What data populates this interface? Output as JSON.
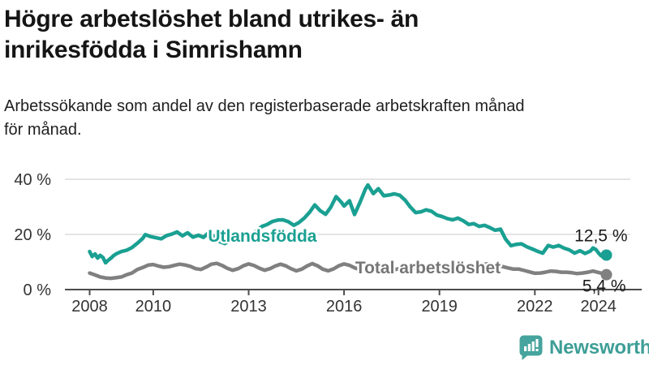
{
  "header": {
    "title_lines": [
      "Högre arbetslöshet bland utrikes- än",
      "inrikesfödda i Simrishamn"
    ],
    "subtitle_lines": [
      "Arbetssökande som andel av den registerbaserade arbetskraften månad",
      "för månad."
    ]
  },
  "chart_data": {
    "type": "line",
    "title": "Högre arbetslöshet bland utrikes- än inrikesfödda i Simrishamn",
    "subtitle": "Arbetssökande som andel av den registerbaserade arbetskraften månad för månad.",
    "x_unit": "year (decimal fraction = month)",
    "y_unit": "percent of registered labour force",
    "xlim": [
      2007.7,
      2025.1
    ],
    "ylim": [
      0,
      40
    ],
    "grid": "horizontal",
    "legend_position": "inline-labels-on-lines",
    "yticks": [
      {
        "value": 0,
        "label": "0 %"
      },
      {
        "value": 20,
        "label": "20 %"
      },
      {
        "value": 40,
        "label": "40 %"
      }
    ],
    "xticks": [
      {
        "value": 2008,
        "label": "2008"
      },
      {
        "value": 2010,
        "label": "2010"
      },
      {
        "value": 2013,
        "label": "2013"
      },
      {
        "value": 2016,
        "label": "2016"
      },
      {
        "value": 2019,
        "label": "2019"
      },
      {
        "value": 2022,
        "label": "2022"
      },
      {
        "value": 2024,
        "label": "2024"
      }
    ],
    "series": [
      {
        "name": "Utlandsfödda",
        "color": "#1aa092",
        "label_color": "#1aa092",
        "label_at": {
          "x": 2011.72,
          "y": 17.35
        },
        "end_annotation": "12,5 %",
        "end_value": 12.5,
        "points": [
          [
            2008.0,
            13.8
          ],
          [
            2008.08,
            12.0
          ],
          [
            2008.17,
            12.9
          ],
          [
            2008.25,
            11.4
          ],
          [
            2008.33,
            12.4
          ],
          [
            2008.42,
            11.6
          ],
          [
            2008.5,
            9.7
          ],
          [
            2008.58,
            10.6
          ],
          [
            2008.67,
            11.4
          ],
          [
            2008.75,
            12.3
          ],
          [
            2008.83,
            12.9
          ],
          [
            2008.92,
            13.4
          ],
          [
            2009.0,
            13.8
          ],
          [
            2009.17,
            14.3
          ],
          [
            2009.33,
            15.2
          ],
          [
            2009.5,
            16.8
          ],
          [
            2009.67,
            18.6
          ],
          [
            2009.75,
            19.9
          ],
          [
            2009.92,
            19.2
          ],
          [
            2010.08,
            18.8
          ],
          [
            2010.25,
            18.4
          ],
          [
            2010.42,
            19.6
          ],
          [
            2010.58,
            20.1
          ],
          [
            2010.75,
            20.9
          ],
          [
            2010.83,
            20.2
          ],
          [
            2010.92,
            19.5
          ],
          [
            2011.08,
            20.6
          ],
          [
            2011.25,
            19.0
          ],
          [
            2011.42,
            19.7
          ],
          [
            2011.58,
            18.9
          ],
          [
            2011.75,
            20.7
          ],
          [
            2011.92,
            19.2
          ],
          [
            2012.08,
            17.4
          ],
          [
            2012.25,
            16.7
          ],
          [
            2012.42,
            17.7
          ],
          [
            2012.58,
            18.6
          ],
          [
            2012.75,
            19.2
          ],
          [
            2012.92,
            19.7
          ],
          [
            2013.08,
            20.2
          ],
          [
            2013.25,
            21.2
          ],
          [
            2013.42,
            22.9
          ],
          [
            2013.58,
            23.6
          ],
          [
            2013.75,
            24.7
          ],
          [
            2013.92,
            25.2
          ],
          [
            2014.08,
            25.3
          ],
          [
            2014.25,
            24.6
          ],
          [
            2014.42,
            23.3
          ],
          [
            2014.58,
            24.3
          ],
          [
            2014.75,
            25.9
          ],
          [
            2014.92,
            28.1
          ],
          [
            2015.08,
            30.7
          ],
          [
            2015.25,
            28.6
          ],
          [
            2015.42,
            27.3
          ],
          [
            2015.58,
            29.8
          ],
          [
            2015.75,
            33.7
          ],
          [
            2015.92,
            31.6
          ],
          [
            2016.0,
            30.3
          ],
          [
            2016.17,
            32.2
          ],
          [
            2016.33,
            27.2
          ],
          [
            2016.5,
            31.6
          ],
          [
            2016.67,
            36.4
          ],
          [
            2016.75,
            37.9
          ],
          [
            2016.92,
            34.8
          ],
          [
            2017.08,
            36.6
          ],
          [
            2017.25,
            34.0
          ],
          [
            2017.42,
            34.3
          ],
          [
            2017.58,
            34.7
          ],
          [
            2017.75,
            34.2
          ],
          [
            2017.92,
            32.4
          ],
          [
            2018.08,
            30.0
          ],
          [
            2018.25,
            27.9
          ],
          [
            2018.42,
            28.2
          ],
          [
            2018.58,
            28.9
          ],
          [
            2018.75,
            28.4
          ],
          [
            2018.92,
            27.0
          ],
          [
            2019.08,
            26.5
          ],
          [
            2019.25,
            25.7
          ],
          [
            2019.42,
            25.3
          ],
          [
            2019.58,
            25.9
          ],
          [
            2019.75,
            24.9
          ],
          [
            2019.92,
            23.6
          ],
          [
            2020.08,
            23.9
          ],
          [
            2020.25,
            22.9
          ],
          [
            2020.42,
            23.3
          ],
          [
            2020.58,
            22.5
          ],
          [
            2020.75,
            21.5
          ],
          [
            2020.92,
            21.9
          ],
          [
            2021.08,
            18.3
          ],
          [
            2021.25,
            15.9
          ],
          [
            2021.42,
            16.4
          ],
          [
            2021.58,
            16.6
          ],
          [
            2021.75,
            15.5
          ],
          [
            2021.92,
            14.7
          ],
          [
            2022.08,
            13.9
          ],
          [
            2022.25,
            13.2
          ],
          [
            2022.42,
            16.0
          ],
          [
            2022.58,
            15.4
          ],
          [
            2022.75,
            16.0
          ],
          [
            2022.92,
            15.0
          ],
          [
            2023.08,
            14.4
          ],
          [
            2023.25,
            13.2
          ],
          [
            2023.42,
            14.1
          ],
          [
            2023.58,
            13.1
          ],
          [
            2023.75,
            14.0
          ],
          [
            2023.83,
            15.1
          ],
          [
            2023.92,
            14.5
          ],
          [
            2024.0,
            13.3
          ],
          [
            2024.08,
            12.3
          ],
          [
            2024.17,
            11.7
          ],
          [
            2024.25,
            12.5
          ]
        ]
      },
      {
        "name": "Total arbetslöshet",
        "color": "#808080",
        "label_color": "#767676",
        "label_at": {
          "x": 2016.35,
          "y": 5.9
        },
        "end_annotation": "5,4 %",
        "end_value": 5.4,
        "points": [
          [
            2008.0,
            6.0
          ],
          [
            2008.17,
            5.3
          ],
          [
            2008.33,
            4.6
          ],
          [
            2008.5,
            4.2
          ],
          [
            2008.67,
            4.1
          ],
          [
            2008.83,
            4.3
          ],
          [
            2009.0,
            4.6
          ],
          [
            2009.17,
            5.4
          ],
          [
            2009.33,
            6.0
          ],
          [
            2009.5,
            7.3
          ],
          [
            2009.67,
            8.0
          ],
          [
            2009.85,
            8.9
          ],
          [
            2010.0,
            9.1
          ],
          [
            2010.17,
            8.5
          ],
          [
            2010.33,
            8.1
          ],
          [
            2010.5,
            8.3
          ],
          [
            2010.67,
            8.8
          ],
          [
            2010.83,
            9.2
          ],
          [
            2011.0,
            8.9
          ],
          [
            2011.17,
            8.4
          ],
          [
            2011.33,
            7.6
          ],
          [
            2011.5,
            7.3
          ],
          [
            2011.67,
            8.2
          ],
          [
            2011.83,
            9.2
          ],
          [
            2012.0,
            9.5
          ],
          [
            2012.17,
            8.7
          ],
          [
            2012.33,
            7.7
          ],
          [
            2012.5,
            7.0
          ],
          [
            2012.67,
            7.6
          ],
          [
            2012.83,
            8.6
          ],
          [
            2013.0,
            9.3
          ],
          [
            2013.17,
            8.7
          ],
          [
            2013.33,
            7.8
          ],
          [
            2013.5,
            7.0
          ],
          [
            2013.67,
            7.6
          ],
          [
            2013.83,
            8.5
          ],
          [
            2014.0,
            9.2
          ],
          [
            2014.17,
            8.6
          ],
          [
            2014.33,
            7.6
          ],
          [
            2014.5,
            6.8
          ],
          [
            2014.67,
            7.4
          ],
          [
            2014.83,
            8.5
          ],
          [
            2015.0,
            9.4
          ],
          [
            2015.17,
            8.6
          ],
          [
            2015.33,
            7.4
          ],
          [
            2015.5,
            6.8
          ],
          [
            2015.67,
            7.5
          ],
          [
            2015.83,
            8.6
          ],
          [
            2016.0,
            9.3
          ],
          [
            2016.17,
            8.8
          ],
          [
            2016.33,
            7.9
          ],
          [
            2016.5,
            7.2
          ],
          [
            2016.67,
            7.7
          ],
          [
            2016.83,
            8.4
          ],
          [
            2017.0,
            9.0
          ],
          [
            2017.17,
            8.4
          ],
          [
            2017.33,
            7.6
          ],
          [
            2017.5,
            7.0
          ],
          [
            2017.67,
            7.4
          ],
          [
            2017.83,
            8.1
          ],
          [
            2018.0,
            8.6
          ],
          [
            2018.17,
            8.0
          ],
          [
            2018.33,
            7.3
          ],
          [
            2018.5,
            6.8
          ],
          [
            2018.67,
            7.2
          ],
          [
            2018.83,
            7.9
          ],
          [
            2019.0,
            8.3
          ],
          [
            2019.17,
            7.8
          ],
          [
            2019.33,
            7.2
          ],
          [
            2019.5,
            6.8
          ],
          [
            2019.67,
            7.2
          ],
          [
            2019.83,
            7.8
          ],
          [
            2020.0,
            8.2
          ],
          [
            2020.17,
            8.6
          ],
          [
            2020.33,
            9.0
          ],
          [
            2020.5,
            9.3
          ],
          [
            2020.67,
            9.1
          ],
          [
            2020.83,
            8.8
          ],
          [
            2021.0,
            8.3
          ],
          [
            2021.17,
            7.8
          ],
          [
            2021.33,
            7.4
          ],
          [
            2021.5,
            7.4
          ],
          [
            2021.67,
            6.9
          ],
          [
            2021.83,
            6.4
          ],
          [
            2022.0,
            5.9
          ],
          [
            2022.17,
            6.0
          ],
          [
            2022.33,
            6.3
          ],
          [
            2022.5,
            6.7
          ],
          [
            2022.67,
            6.6
          ],
          [
            2022.83,
            6.3
          ],
          [
            2023.0,
            6.3
          ],
          [
            2023.17,
            6.1
          ],
          [
            2023.33,
            5.8
          ],
          [
            2023.5,
            6.0
          ],
          [
            2023.67,
            6.3
          ],
          [
            2023.83,
            6.7
          ],
          [
            2024.0,
            6.2
          ],
          [
            2024.17,
            5.7
          ],
          [
            2024.25,
            5.4
          ]
        ]
      }
    ]
  },
  "footer": {
    "brand": "Newsworthy",
    "logo_icon": "bar-chart-speech-bubble-icon"
  },
  "colors": {
    "accent_teal": "#1aa092",
    "line_gray": "#808080",
    "label_gray": "#767676",
    "title_text": "#151515",
    "axis_text": "#333333",
    "gridline": "#dcdcdc",
    "axis_line": "#4c4c4c",
    "logo_teal": "#45a49d",
    "brand_text": "#3d9e97"
  }
}
